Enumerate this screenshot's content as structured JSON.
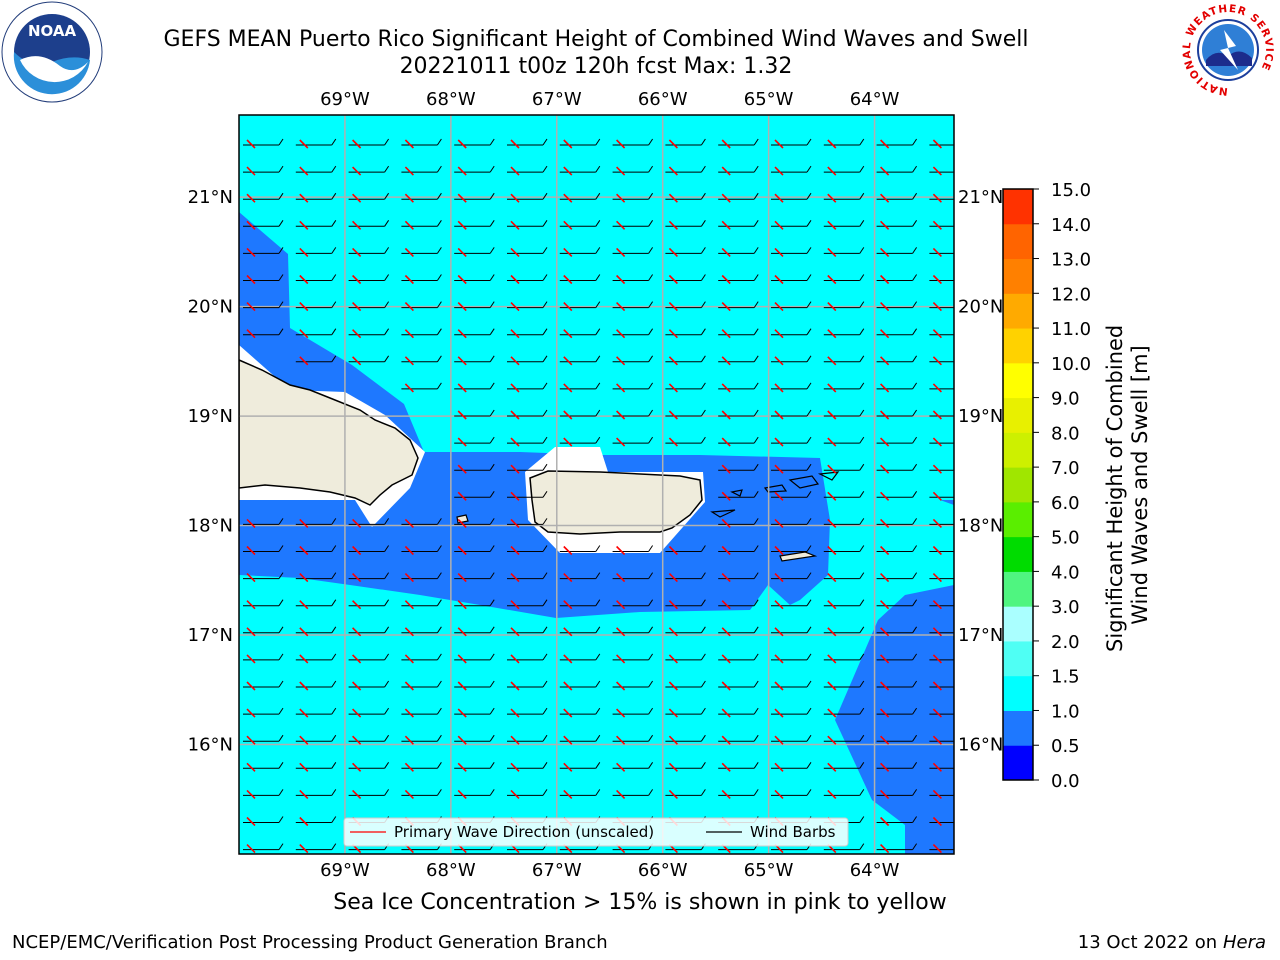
{
  "title_line1": "GEFS MEAN Puerto Rico Significant Height of Combined Wind Waves and Swell",
  "title_line2": "20221011 t00z 120h fcst   Max: 1.32",
  "caption": "Sea Ice Concentration > 15% is shown in pink to yellow",
  "footer_left": "NCEP/EMC/Verification Post Processing Product Generation Branch",
  "footer_right_prefix": "13 Oct 2022 on ",
  "footer_right_host": "Hera",
  "logos": {
    "noaa_text": "NOAA",
    "nws_ring_text": "NATIONAL WEATHER SERVICE"
  },
  "legend": {
    "items": [
      {
        "label": "Primary Wave Direction (unscaled)",
        "color": "#ff0000"
      },
      {
        "label": "Wind Barbs",
        "color": "#000000"
      }
    ]
  },
  "chart_data": {
    "type": "heatmap",
    "title": "GEFS MEAN Puerto Rico Significant Height of Combined Wind Waves and Swell",
    "subtitle": "20221011 t00z 120h fcst   Max: 1.32",
    "max_value": 1.32,
    "x_axis": {
      "ticks": [
        -69,
        -68,
        -67,
        -66,
        -65,
        -64
      ],
      "tick_labels": [
        "69°W",
        "68°W",
        "67°W",
        "66°W",
        "65°W",
        "64°W"
      ],
      "range": [
        -70,
        -63.25
      ]
    },
    "y_axis": {
      "ticks": [
        16,
        17,
        18,
        19,
        20,
        21
      ],
      "tick_labels": [
        "16°N",
        "17°N",
        "18°N",
        "19°N",
        "20°N",
        "21°N"
      ],
      "range": [
        15,
        21.75
      ]
    },
    "grid": true,
    "colorbar": {
      "label": "Significant Height of Combined Wind Waves and Swell [m]",
      "tick_labels": [
        "0.0",
        "0.5",
        "1.0",
        "1.5",
        "2.0",
        "3.0",
        "4.0",
        "5.0",
        "6.0",
        "7.0",
        "8.0",
        "9.0",
        "10.0",
        "11.0",
        "12.0",
        "13.0",
        "14.0",
        "15.0"
      ],
      "colors": [
        "#0000ff",
        "#1e78ff",
        "#00ffff",
        "#4ffff4",
        "#aaffff",
        "#4ff580",
        "#00dc00",
        "#5aee00",
        "#a0e600",
        "#cdf000",
        "#e8f000",
        "#ffff00",
        "#ffd200",
        "#ffaa00",
        "#ff8000",
        "#ff6400",
        "#ff3200",
        "#ff0000"
      ]
    },
    "field_colors": {
      "ocean_1_0_to_1_5": "#00ffff",
      "ocean_0_5_to_1_0": "#1e78ff",
      "ocean_0_0_to_0_5": "#0000ff",
      "land": "#efecdc"
    },
    "legend_placement": "bottom-center",
    "series": [
      {
        "name": "Primary Wave Direction (unscaled)",
        "direction": "toward west-southwest",
        "color": "#ff0000"
      },
      {
        "name": "Wind Barbs",
        "direction": "easterly",
        "color": "#000000"
      }
    ]
  }
}
